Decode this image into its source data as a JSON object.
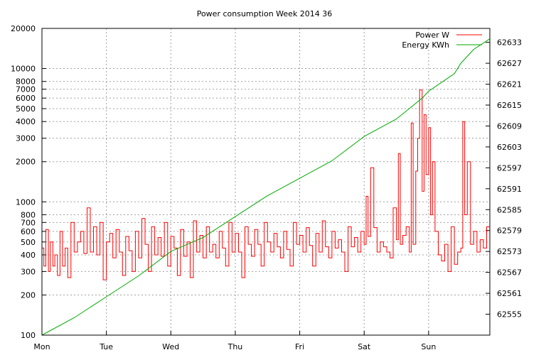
{
  "chart_data": {
    "type": "line",
    "title": "Power consumption Week 2014 36",
    "grid": true,
    "legend_position": "top-right",
    "x": {
      "tick_labels": [
        "Mon",
        "Tue",
        "Wed",
        "Thu",
        "Fri",
        "Sat",
        "Sun"
      ],
      "range_days": [
        0,
        6.95
      ]
    },
    "y_left": {
      "scale": "log",
      "range": [
        100,
        20000
      ],
      "ticks": [
        100,
        200,
        300,
        400,
        500,
        600,
        700,
        800,
        1000,
        2000,
        3000,
        4000,
        5000,
        6000,
        7000,
        8000,
        10000,
        20000
      ]
    },
    "y_right": {
      "scale": "linear",
      "range": [
        62549,
        62637
      ],
      "ticks": [
        62555,
        62561,
        62567,
        62573,
        62579,
        62585,
        62591,
        62597,
        62603,
        62609,
        62615,
        62621,
        62627,
        62633
      ]
    },
    "series": [
      {
        "name": "Power W",
        "axis": "left",
        "color": "#ff0000",
        "x_days": [
          0,
          0.03,
          0.06,
          0.1,
          0.13,
          0.17,
          0.2,
          0.24,
          0.28,
          0.32,
          0.36,
          0.4,
          0.45,
          0.5,
          0.55,
          0.6,
          0.65,
          0.7,
          0.75,
          0.8,
          0.85,
          0.9,
          0.95,
          1.0,
          1.05,
          1.1,
          1.15,
          1.2,
          1.25,
          1.3,
          1.35,
          1.4,
          1.45,
          1.5,
          1.55,
          1.6,
          1.65,
          1.7,
          1.75,
          1.8,
          1.85,
          1.9,
          1.95,
          2.0,
          2.05,
          2.1,
          2.15,
          2.2,
          2.25,
          2.3,
          2.35,
          2.4,
          2.45,
          2.5,
          2.55,
          2.6,
          2.65,
          2.7,
          2.75,
          2.8,
          2.85,
          2.9,
          2.95,
          3.0,
          3.05,
          3.1,
          3.15,
          3.2,
          3.25,
          3.3,
          3.35,
          3.4,
          3.45,
          3.5,
          3.55,
          3.6,
          3.65,
          3.7,
          3.75,
          3.8,
          3.85,
          3.9,
          3.95,
          4.0,
          4.05,
          4.1,
          4.15,
          4.2,
          4.25,
          4.3,
          4.35,
          4.4,
          4.45,
          4.5,
          4.55,
          4.6,
          4.65,
          4.7,
          4.75,
          4.8,
          4.85,
          4.9,
          4.95,
          5.0,
          5.03,
          5.06,
          5.1,
          5.15,
          5.2,
          5.25,
          5.3,
          5.35,
          5.4,
          5.45,
          5.5,
          5.53,
          5.56,
          5.6,
          5.65,
          5.7,
          5.73,
          5.76,
          5.8,
          5.83,
          5.86,
          5.9,
          5.93,
          5.96,
          6.0,
          6.03,
          6.06,
          6.1,
          6.15,
          6.2,
          6.25,
          6.3,
          6.35,
          6.4,
          6.45,
          6.5,
          6.53,
          6.56,
          6.6,
          6.65,
          6.7,
          6.75,
          6.8,
          6.85,
          6.9,
          6.95
        ],
        "values": [
          450,
          330,
          620,
          300,
          500,
          330,
          400,
          280,
          600,
          330,
          450,
          270,
          700,
          420,
          500,
          600,
          410,
          900,
          420,
          650,
          400,
          700,
          260,
          500,
          580,
          380,
          620,
          420,
          280,
          550,
          430,
          300,
          600,
          380,
          750,
          480,
          300,
          650,
          400,
          540,
          390,
          700,
          330,
          550,
          450,
          280,
          620,
          390,
          500,
          270,
          720,
          420,
          560,
          380,
          650,
          420,
          480,
          380,
          600,
          450,
          330,
          700,
          420,
          580,
          420,
          270,
          650,
          480,
          390,
          620,
          480,
          330,
          700,
          500,
          420,
          580,
          460,
          380,
          600,
          440,
          330,
          700,
          480,
          560,
          420,
          640,
          470,
          330,
          580,
          420,
          720,
          460,
          380,
          600,
          450,
          520,
          420,
          300,
          650,
          460,
          540,
          420,
          600,
          480,
          1100,
          550,
          1800,
          640,
          420,
          500,
          460,
          420,
          380,
          900,
          520,
          2300,
          480,
          560,
          650,
          420,
          3900,
          480,
          1700,
          3000,
          6900,
          1200,
          4500,
          1600,
          3600,
          800,
          2000,
          600,
          400,
          360,
          480,
          300,
          650,
          340,
          420,
          450,
          4000,
          800,
          2000,
          480,
          600,
          420,
          520,
          450,
          650,
          500
        ]
      },
      {
        "name": "Energy KWh",
        "axis": "right",
        "color": "#00aa00",
        "x_days": [
          0,
          0.5,
          1,
          1.5,
          2,
          2.5,
          3,
          3.5,
          4,
          4.5,
          5,
          5.5,
          5.7,
          5.9,
          6,
          6.4,
          6.5,
          6.7,
          6.95
        ],
        "values": [
          62549,
          62554,
          62560,
          62566,
          62573,
          62577,
          62583,
          62589,
          62594,
          62599,
          62606,
          62611,
          62614,
          62617,
          62619,
          62624,
          62627,
          62631,
          62634
        ]
      }
    ]
  }
}
